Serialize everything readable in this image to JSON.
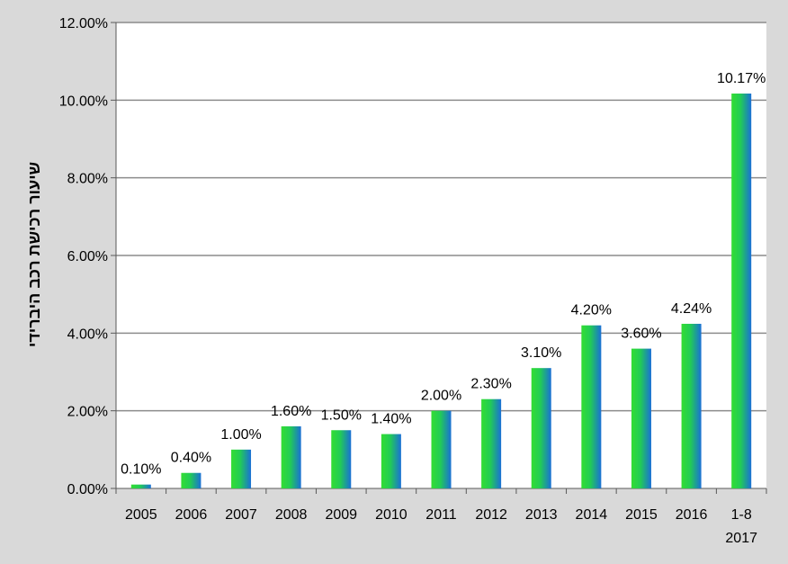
{
  "chart_data": {
    "type": "bar",
    "title": "",
    "ylabel": "שיעור רכישת רכב היברידי",
    "xlabel": "",
    "categories": [
      {
        "line1": "2005",
        "line2": ""
      },
      {
        "line1": "2006",
        "line2": ""
      },
      {
        "line1": "2007",
        "line2": ""
      },
      {
        "line1": "2008",
        "line2": ""
      },
      {
        "line1": "2009",
        "line2": ""
      },
      {
        "line1": "2010",
        "line2": ""
      },
      {
        "line1": "2011",
        "line2": ""
      },
      {
        "line1": "2012",
        "line2": ""
      },
      {
        "line1": "2013",
        "line2": ""
      },
      {
        "line1": "2014",
        "line2": ""
      },
      {
        "line1": "2015",
        "line2": ""
      },
      {
        "line1": "2016",
        "line2": ""
      },
      {
        "line1": "1-8",
        "line2": "2017"
      }
    ],
    "values": [
      0.1,
      0.4,
      1.0,
      1.6,
      1.5,
      1.4,
      2.0,
      2.3,
      3.1,
      4.2,
      3.6,
      4.24,
      10.17
    ],
    "data_labels": [
      "0.10%",
      "0.40%",
      "1.00%",
      "1.60%",
      "1.50%",
      "1.40%",
      "2.00%",
      "2.30%",
      "3.10%",
      "4.20%",
      "3.60%",
      "4.24%",
      "10.17%"
    ],
    "ylim": [
      0,
      12
    ],
    "yticks": [
      0,
      2,
      4,
      6,
      8,
      10,
      12
    ],
    "ytick_labels": [
      "0.00%",
      "2.00%",
      "4.00%",
      "6.00%",
      "8.00%",
      "10.00%",
      "12.00%"
    ],
    "grid": true,
    "legend": "none",
    "colors": {
      "background": "#d9d9d9",
      "plot_background": "#ffffff",
      "gridline": "#8c8c8c",
      "bar_left": "#33dd33",
      "bar_right": "#1a6fd6",
      "axis": "#595959"
    }
  }
}
